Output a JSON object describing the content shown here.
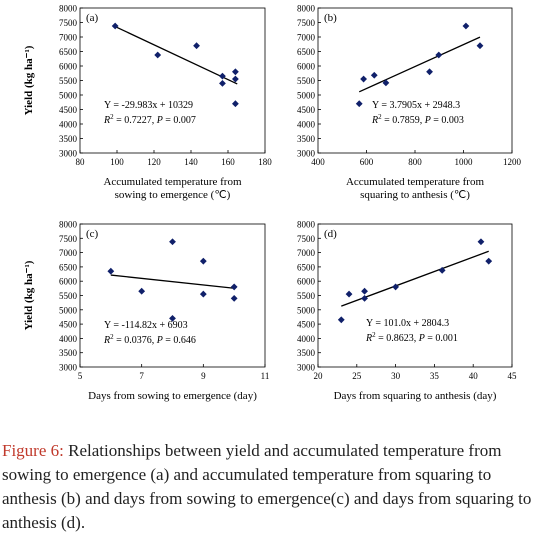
{
  "chart_data": [
    {
      "type": "scatter",
      "panel": "(a)",
      "ylabel": "Yield (kg ha⁻¹)",
      "xlabel_lines": [
        "Accumulated temperature from",
        "sowing to emergence (℃)"
      ],
      "xlim": [
        80,
        180
      ],
      "xticks": [
        "80",
        "100",
        "120",
        "140",
        "160",
        "180"
      ],
      "ylim": [
        3000,
        8000
      ],
      "yticks": [
        "3000",
        "3500",
        "4000",
        "4500",
        "5000",
        "5500",
        "6000",
        "6500",
        "7000",
        "7500",
        "8000"
      ],
      "points": [
        {
          "x": 99,
          "y": 7380
        },
        {
          "x": 122,
          "y": 6380
        },
        {
          "x": 143,
          "y": 6700
        },
        {
          "x": 157,
          "y": 5650
        },
        {
          "x": 157,
          "y": 5400
        },
        {
          "x": 164,
          "y": 5800
        },
        {
          "x": 164,
          "y": 5550
        },
        {
          "x": 164,
          "y": 4700
        }
      ],
      "equation": "Y = -29.983x + 10329",
      "r2_text": "= 0.7227, ",
      "p_text": "= 0.007",
      "fit": {
        "slope": -29.983,
        "intercept": 10329,
        "x_range": [
          99,
          165
        ]
      }
    },
    {
      "type": "scatter",
      "panel": "(b)",
      "ylabel": "",
      "xlabel_lines": [
        "Accumulated temperature from",
        "squaring to anthesis (℃)"
      ],
      "xlim": [
        400,
        1200
      ],
      "xticks": [
        "400",
        "600",
        "800",
        "1000",
        "1200"
      ],
      "ylim": [
        3000,
        8000
      ],
      "yticks": [
        "3000",
        "3500",
        "4000",
        "4500",
        "5000",
        "5500",
        "6000",
        "6500",
        "7000",
        "7500",
        "8000"
      ],
      "points": [
        {
          "x": 570,
          "y": 4700
        },
        {
          "x": 588,
          "y": 5550
        },
        {
          "x": 632,
          "y": 5680
        },
        {
          "x": 680,
          "y": 5420
        },
        {
          "x": 860,
          "y": 5800
        },
        {
          "x": 898,
          "y": 6380
        },
        {
          "x": 1010,
          "y": 7380
        },
        {
          "x": 1068,
          "y": 6700
        }
      ],
      "equation": "Y = 3.7905x + 2948.3",
      "r2_text": "= 0.7859, ",
      "p_text": "= 0.003",
      "fit": {
        "slope": 3.7905,
        "intercept": 2948.3,
        "x_range": [
          570,
          1068
        ]
      }
    },
    {
      "type": "scatter",
      "panel": "(c)",
      "ylabel": "Yield (kg ha⁻¹)",
      "xlabel_lines": [
        "Days from sowing to emergence (day)"
      ],
      "xlim": [
        5,
        11
      ],
      "xticks": [
        "5",
        "7",
        "9",
        "11"
      ],
      "ylim": [
        3000,
        8000
      ],
      "yticks": [
        "3000",
        "3500",
        "4000",
        "4500",
        "5000",
        "5500",
        "6000",
        "6500",
        "7000",
        "7500",
        "8000"
      ],
      "points": [
        {
          "x": 6,
          "y": 6350
        },
        {
          "x": 7,
          "y": 5650
        },
        {
          "x": 8,
          "y": 7380
        },
        {
          "x": 8,
          "y": 4700
        },
        {
          "x": 9,
          "y": 6700
        },
        {
          "x": 9,
          "y": 5550
        },
        {
          "x": 10,
          "y": 5800
        },
        {
          "x": 10,
          "y": 5400
        }
      ],
      "equation": "Y = -114.82x + 6903",
      "r2_text": "= 0.0376, ",
      "p_text": "= 0.646",
      "fit": {
        "slope": -114.82,
        "intercept": 6903,
        "x_range": [
          6,
          10
        ]
      }
    },
    {
      "type": "scatter",
      "panel": "(d)",
      "ylabel": "",
      "xlabel_lines": [
        "Days from squaring to anthesis (day)"
      ],
      "xlim": [
        20,
        45
      ],
      "xticks": [
        "20",
        "25",
        "30",
        "35",
        "40",
        "45"
      ],
      "ylim": [
        3000,
        8000
      ],
      "yticks": [
        "3000",
        "3500",
        "4000",
        "4500",
        "5000",
        "5500",
        "6000",
        "6500",
        "7000",
        "7500",
        "8000"
      ],
      "points": [
        {
          "x": 23,
          "y": 4650
        },
        {
          "x": 24,
          "y": 5550
        },
        {
          "x": 26,
          "y": 5650
        },
        {
          "x": 26,
          "y": 5400
        },
        {
          "x": 30,
          "y": 5800
        },
        {
          "x": 36,
          "y": 6380
        },
        {
          "x": 41,
          "y": 7380
        },
        {
          "x": 42,
          "y": 6700
        }
      ],
      "equation": "Y = 101.0x + 2804.3",
      "r2_text": "= 0.8623, ",
      "p_text": "= 0.001",
      "fit": {
        "slope": 101.0,
        "intercept": 2804.3,
        "x_range": [
          23,
          42
        ]
      }
    }
  ],
  "caption": {
    "label": "Figure 6:",
    "text": " Relationships between yield and accumulated temperature from sowing to emergence (a) and accumulated temperature from squaring to anthesis (b) and days from sowing to emergence(c) and days from squaring to anthesis (d)."
  }
}
